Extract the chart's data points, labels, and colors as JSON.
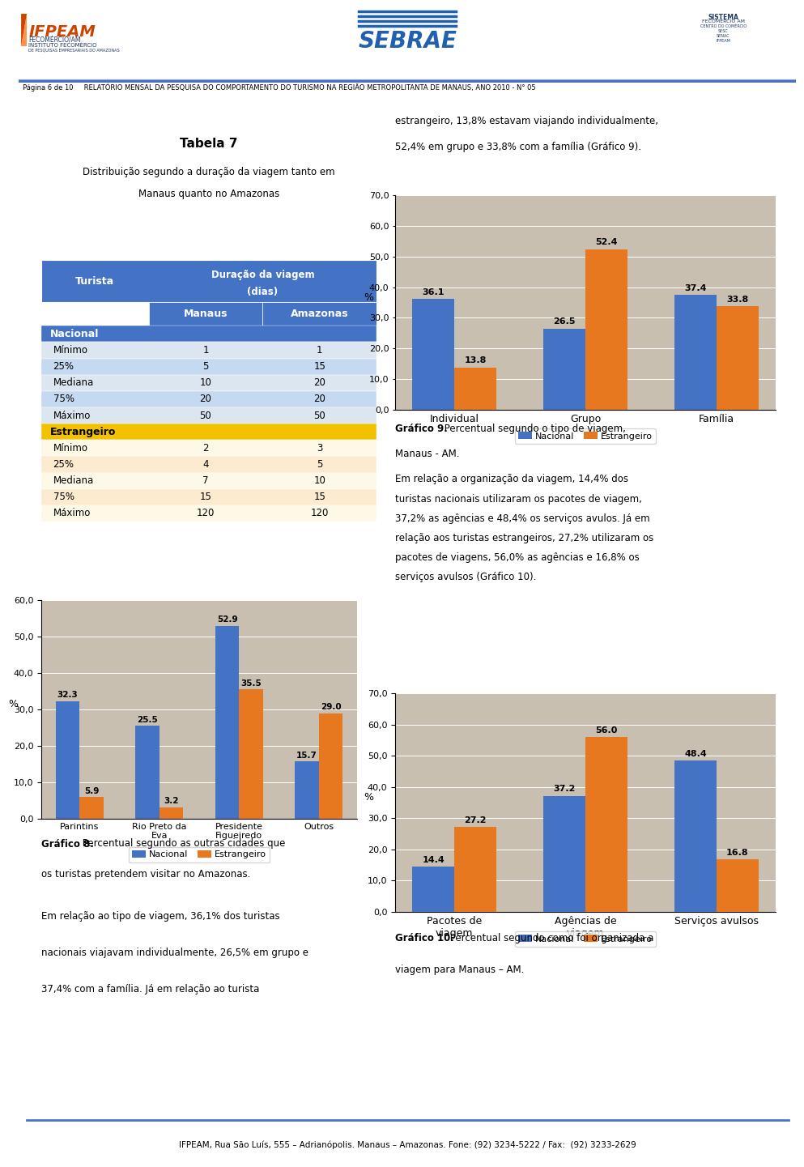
{
  "page_title": "Página 6 de 10     RELATÓRIO MENSAL DA PESQUISA DO COMPORTAMENTO DO TURISMO NA REGIÃO METROPOLITANTA DE MANAUS, ANO 2010 - N° 05",
  "intro_text1": "estrangeiro, 13,8% estavam viajando individualmente,",
  "intro_text2": "52,4% em grupo e 33,8% com a família (Gráfico 9).",
  "table_title": "Tabela 7",
  "table_subtitle1": "Distribuição segundo a duração da viagem tanto em",
  "table_subtitle2": "Manaus quanto no Amazonas",
  "table_header1": "Turista",
  "table_header2": "Duração da viagem\n(dias)",
  "table_header3": "Manaus",
  "table_header4": "Amazonas",
  "table_data": [
    {
      "group": "Nacional",
      "label": "Mínimo",
      "manaus": "1",
      "amazonas": "1"
    },
    {
      "group": "Nacional",
      "label": "25%",
      "manaus": "5",
      "amazonas": "15"
    },
    {
      "group": "Nacional",
      "label": "Mediana",
      "manaus": "10",
      "amazonas": "20"
    },
    {
      "group": "Nacional",
      "label": "75%",
      "manaus": "20",
      "amazonas": "20"
    },
    {
      "group": "Nacional",
      "label": "Máximo",
      "manaus": "50",
      "amazonas": "50"
    },
    {
      "group": "Estrangeiro",
      "label": "Mínimo",
      "manaus": "2",
      "amazonas": "3"
    },
    {
      "group": "Estrangeiro",
      "label": "25%",
      "manaus": "4",
      "amazonas": "5"
    },
    {
      "group": "Estrangeiro",
      "label": "Mediana",
      "manaus": "7",
      "amazonas": "10"
    },
    {
      "group": "Estrangeiro",
      "label": "75%",
      "manaus": "15",
      "amazonas": "15"
    },
    {
      "group": "Estrangeiro",
      "label": "Máximo",
      "manaus": "120",
      "amazonas": "120"
    }
  ],
  "chart9_categories": [
    "Individual",
    "Grupo",
    "Família"
  ],
  "chart9_nacional": [
    36.1,
    26.5,
    37.4
  ],
  "chart9_estrangeiro": [
    13.8,
    52.4,
    33.8
  ],
  "chart9_yticks": [
    0,
    10,
    20,
    30,
    40,
    50,
    60,
    70
  ],
  "chart8_categories": [
    "Parintins",
    "Rio Preto da\nEva",
    "Presidente\nFigueiredo",
    "Outros"
  ],
  "chart8_nacional": [
    32.3,
    25.5,
    52.9,
    15.7
  ],
  "chart8_estrangeiro": [
    5.9,
    3.2,
    35.5,
    29.0
  ],
  "chart8_yticks": [
    0,
    10,
    20,
    30,
    40,
    50,
    60
  ],
  "chart10_categories": [
    "Pacotes de\nviagem",
    "Agências de\nviagem",
    "Serviços avulsos"
  ],
  "chart10_nacional": [
    14.4,
    37.2,
    48.4
  ],
  "chart10_estrangeiro": [
    27.2,
    56.0,
    16.8
  ],
  "chart10_yticks": [
    0,
    10,
    20,
    30,
    40,
    50,
    60,
    70
  ],
  "text_block1": [
    "Em relação a organização da viagem, 14,4% dos",
    "turistas nacionais utilizaram os pacotes de viagem,",
    "37,2% as agências e 48,4% os serviços avulos. Já em",
    "relação aos turistas estrangeiros, 27,2% utilizaram os",
    "pacotes de viagens, 56,0% as agências e 16,8% os",
    "serviços avulsos (Gráfico 10)."
  ],
  "text_block2": [
    "Em relação ao tipo de viagem, 36,1% dos turistas",
    "nacionais viajavam individualmente, 26,5% em grupo e",
    "37,4% com a família. Já em relação ao turista"
  ],
  "footer_text": "IFPEAM, Rua São Luís, 555 – Adrianópolis. Manaus – Amazonas. Fone: (92) 3234-5222 / Fax:  (92) 3233-2629",
  "nacional_color": "#4472C4",
  "estrangeiro_color": "#E87820",
  "table_header_blue": "#4472C4",
  "table_row_light": "#DCE6F1",
  "table_row_light2": "#C5D9F1",
  "estrangeiro_header_color": "#F2C200",
  "bg_color": "#FFFFFF"
}
